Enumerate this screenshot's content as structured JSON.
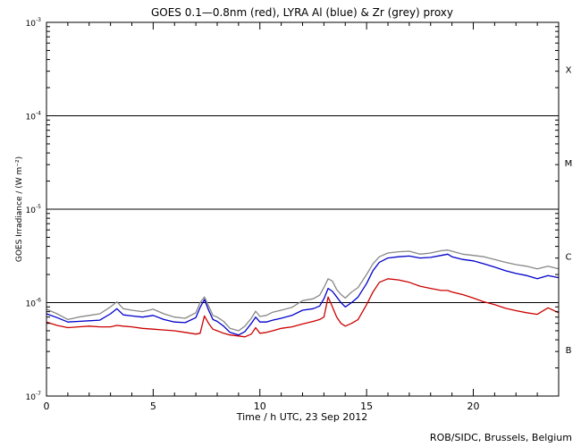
{
  "chart_data": {
    "type": "line",
    "title": "GOES 0.1—0.8nm (red), LYRA Al (blue) & Zr (grey) proxy",
    "xlabel": "Time / h UTC, 23 Sep 2012",
    "ylabel": "GOES Irradiance / (W m⁻²)",
    "xlim": [
      0,
      24
    ],
    "ylim_log10": [
      -7,
      -3
    ],
    "x_ticks": [
      {
        "value": 0,
        "label": "0"
      },
      {
        "value": 5,
        "label": "5"
      },
      {
        "value": 10,
        "label": "10"
      },
      {
        "value": 15,
        "label": "15"
      },
      {
        "value": 20,
        "label": "20"
      }
    ],
    "y_ticks": [
      {
        "exp": -7,
        "base": "10",
        "sup": "-7"
      },
      {
        "exp": -6,
        "base": "10",
        "sup": "-6"
      },
      {
        "exp": -5,
        "base": "10",
        "sup": "-5"
      },
      {
        "exp": -4,
        "base": "10",
        "sup": "-4"
      },
      {
        "exp": -3,
        "base": "10",
        "sup": "-3"
      }
    ],
    "class_lines_log10": [
      -6,
      -5,
      -4
    ],
    "flare_classes": [
      {
        "label": "B",
        "log10": -6.5
      },
      {
        "label": "C",
        "log10": -5.5
      },
      {
        "label": "M",
        "log10": -4.5
      },
      {
        "label": "X",
        "log10": -3.5
      }
    ],
    "series": [
      {
        "name": "LYRA Zr proxy",
        "color": "#888888",
        "x": [
          0,
          0.5,
          1,
          1.5,
          2,
          2.5,
          3,
          3.3,
          3.6,
          4,
          4.5,
          5,
          5.5,
          6,
          6.5,
          7,
          7.2,
          7.4,
          7.6,
          7.8,
          8,
          8.3,
          8.6,
          9,
          9.3,
          9.6,
          9.8,
          10,
          10.3,
          10.6,
          11,
          11.5,
          12,
          12.5,
          12.8,
          13,
          13.2,
          13.4,
          13.6,
          13.8,
          14,
          14.3,
          14.6,
          15,
          15.3,
          15.6,
          16,
          16.5,
          17,
          17.5,
          18,
          18.5,
          18.8,
          19,
          19.5,
          20,
          20.5,
          21,
          21.5,
          22,
          22.5,
          23,
          23.5,
          24
        ],
        "y": [
          8.5e-07,
          7.6e-07,
          6.6e-07,
          7e-07,
          7.3e-07,
          7.6e-07,
          9e-07,
          1.02e-06,
          8.6e-07,
          8.3e-07,
          8e-07,
          8.5e-07,
          7.6e-07,
          7e-07,
          6.8e-07,
          7.8e-07,
          1e-06,
          1.15e-06,
          9.2e-07,
          7.3e-07,
          7e-07,
          6.3e-07,
          5.3e-07,
          5e-07,
          5.6e-07,
          6.8e-07,
          8.1e-07,
          7.1e-07,
          7.3e-07,
          7.9e-07,
          8.3e-07,
          8.9e-07,
          1.05e-06,
          1.1e-06,
          1.2e-06,
          1.45e-06,
          1.8e-06,
          1.7e-06,
          1.38e-06,
          1.22e-06,
          1.12e-06,
          1.3e-06,
          1.45e-06,
          2e-06,
          2.6e-06,
          3.1e-06,
          3.4e-06,
          3.5e-06,
          3.55e-06,
          3.3e-06,
          3.4e-06,
          3.6e-06,
          3.65e-06,
          3.55e-06,
          3.3e-06,
          3.2e-06,
          3.1e-06,
          2.9e-06,
          2.7e-06,
          2.55e-06,
          2.45e-06,
          2.3e-06,
          2.45e-06,
          2.3e-06
        ]
      },
      {
        "name": "LYRA Al proxy",
        "color": "#0000cc",
        "x": [
          0,
          0.5,
          1,
          1.5,
          2,
          2.5,
          3,
          3.3,
          3.6,
          4,
          4.5,
          5,
          5.5,
          6,
          6.5,
          7,
          7.2,
          7.4,
          7.6,
          7.8,
          8,
          8.3,
          8.6,
          9,
          9.3,
          9.6,
          9.8,
          10,
          10.3,
          10.6,
          11,
          11.5,
          12,
          12.5,
          12.8,
          13,
          13.2,
          13.4,
          13.6,
          13.8,
          14,
          14.3,
          14.6,
          15,
          15.3,
          15.6,
          16,
          16.5,
          17,
          17.5,
          18,
          18.5,
          18.8,
          19,
          19.5,
          20,
          20.5,
          21,
          21.5,
          22,
          22.5,
          23,
          23.5,
          24
        ],
        "y": [
          7.6e-07,
          6.9e-07,
          6.2e-07,
          6.3e-07,
          6.4e-07,
          6.5e-07,
          7.6e-07,
          8.6e-07,
          7.4e-07,
          7.2e-07,
          7e-07,
          7.3e-07,
          6.6e-07,
          6.2e-07,
          6.1e-07,
          6.9e-07,
          8.9e-07,
          1.08e-06,
          8.3e-07,
          6.6e-07,
          6.3e-07,
          5.6e-07,
          4.8e-07,
          4.5e-07,
          4.9e-07,
          6e-07,
          7e-07,
          6.2e-07,
          6.2e-07,
          6.5e-07,
          6.8e-07,
          7.3e-07,
          8.3e-07,
          8.6e-07,
          9.2e-07,
          1.1e-06,
          1.42e-06,
          1.32e-06,
          1.15e-06,
          1e-06,
          9e-07,
          1e-06,
          1.15e-06,
          1.6e-06,
          2.2e-06,
          2.7e-06,
          3e-06,
          3.1e-06,
          3.15e-06,
          3e-06,
          3.05e-06,
          3.2e-06,
          3.3e-06,
          3.1e-06,
          2.9e-06,
          2.8e-06,
          2.6e-06,
          2.4e-06,
          2.2e-06,
          2.05e-06,
          1.95e-06,
          1.8e-06,
          1.95e-06,
          1.85e-06
        ]
      },
      {
        "name": "GOES 0.1-0.8nm",
        "color": "#cc0000",
        "x": [
          0,
          0.5,
          1,
          1.5,
          2,
          2.5,
          3,
          3.3,
          3.6,
          4,
          4.5,
          5,
          5.5,
          6,
          6.5,
          7,
          7.2,
          7.4,
          7.6,
          7.8,
          8,
          8.3,
          8.6,
          9,
          9.3,
          9.6,
          9.8,
          10,
          10.3,
          10.6,
          11,
          11.5,
          12,
          12.5,
          12.8,
          13,
          13.2,
          13.4,
          13.6,
          13.8,
          14,
          14.3,
          14.6,
          15,
          15.3,
          15.6,
          16,
          16.5,
          17,
          17.5,
          18,
          18.5,
          18.8,
          19,
          19.5,
          20,
          20.5,
          21,
          21.5,
          22,
          22.5,
          23,
          23.5,
          24
        ],
        "y": [
          6.2e-07,
          5.7e-07,
          5.4e-07,
          5.5e-07,
          5.6e-07,
          5.5e-07,
          5.5e-07,
          5.7e-07,
          5.6e-07,
          5.5e-07,
          5.3e-07,
          5.2e-07,
          5.1e-07,
          5e-07,
          4.8e-07,
          4.6e-07,
          4.7e-07,
          7.2e-07,
          6e-07,
          5.2e-07,
          5e-07,
          4.7e-07,
          4.5e-07,
          4.4e-07,
          4.3e-07,
          4.6e-07,
          5.4e-07,
          4.7e-07,
          4.8e-07,
          5e-07,
          5.3e-07,
          5.5e-07,
          5.9e-07,
          6.3e-07,
          6.6e-07,
          7e-07,
          1.15e-06,
          9e-07,
          7e-07,
          6e-07,
          5.6e-07,
          6e-07,
          6.6e-07,
          9.5e-07,
          1.3e-06,
          1.65e-06,
          1.8e-06,
          1.75e-06,
          1.65e-06,
          1.5e-06,
          1.42e-06,
          1.35e-06,
          1.35e-06,
          1.3e-06,
          1.22e-06,
          1.12e-06,
          1.02e-06,
          9.5e-07,
          8.7e-07,
          8.2e-07,
          7.8e-07,
          7.5e-07,
          8.8e-07,
          7.8e-07
        ]
      }
    ],
    "credit": "ROB/SIDC, Brussels, Belgium"
  }
}
